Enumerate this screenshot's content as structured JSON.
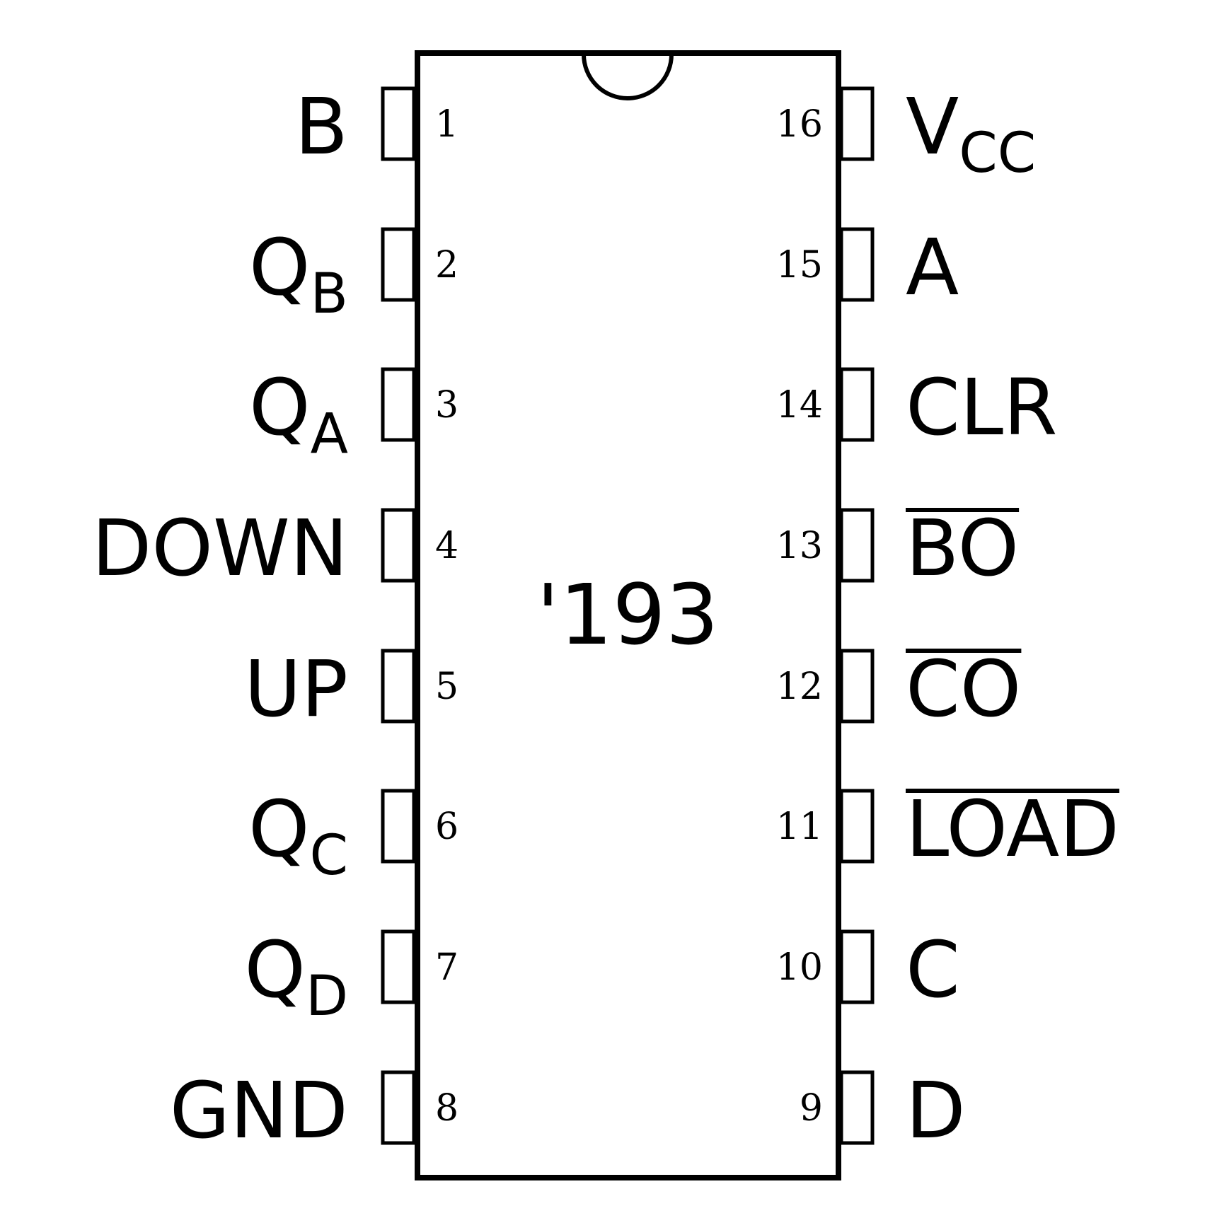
{
  "chip": {
    "name": "'193"
  },
  "pins": [
    {
      "number": "1",
      "label": "B",
      "sub": "",
      "overbar": false
    },
    {
      "number": "2",
      "label": "Q",
      "sub": "B",
      "overbar": false
    },
    {
      "number": "3",
      "label": "Q",
      "sub": "A",
      "overbar": false
    },
    {
      "number": "4",
      "label": "DOWN",
      "sub": "",
      "overbar": false
    },
    {
      "number": "5",
      "label": "UP",
      "sub": "",
      "overbar": false
    },
    {
      "number": "6",
      "label": "Q",
      "sub": "C",
      "overbar": false
    },
    {
      "number": "7",
      "label": "Q",
      "sub": "D",
      "overbar": false
    },
    {
      "number": "8",
      "label": "GND",
      "sub": "",
      "overbar": false
    },
    {
      "number": "9",
      "label": "D",
      "sub": "",
      "overbar": false
    },
    {
      "number": "10",
      "label": "C",
      "sub": "",
      "overbar": false
    },
    {
      "number": "11",
      "label": "LOAD",
      "sub": "",
      "overbar": true
    },
    {
      "number": "12",
      "label": "CO",
      "sub": "",
      "overbar": true
    },
    {
      "number": "13",
      "label": "BO",
      "sub": "",
      "overbar": true
    },
    {
      "number": "14",
      "label": "CLR",
      "sub": "",
      "overbar": false
    },
    {
      "number": "15",
      "label": "A",
      "sub": "",
      "overbar": false
    },
    {
      "number": "16",
      "label": "V",
      "sub": "CC",
      "overbar": false
    }
  ]
}
